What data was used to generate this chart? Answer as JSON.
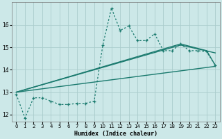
{
  "xlabel": "Humidex (Indice chaleur)",
  "bg_color": "#cce8e8",
  "grid_color": "#aacccc",
  "line_color": "#1a7a6e",
  "xlim": [
    -0.5,
    23.5
  ],
  "ylim": [
    11.7,
    17.0
  ],
  "yticks": [
    12,
    13,
    14,
    15,
    16
  ],
  "xticks": [
    0,
    1,
    2,
    3,
    4,
    5,
    6,
    7,
    8,
    9,
    10,
    11,
    12,
    13,
    14,
    15,
    16,
    17,
    18,
    19,
    20,
    21,
    22,
    23
  ],
  "line1_x": [
    0,
    1,
    2,
    3,
    4,
    5,
    6,
    7,
    8,
    9,
    10,
    11,
    12,
    13,
    14,
    15,
    16,
    17,
    18,
    19,
    20,
    21,
    22,
    23
  ],
  "line1_y": [
    12.9,
    11.85,
    12.75,
    12.75,
    12.6,
    12.45,
    12.45,
    12.5,
    12.5,
    12.6,
    15.1,
    16.75,
    15.75,
    15.95,
    15.3,
    15.3,
    15.6,
    14.85,
    14.85,
    15.15,
    14.85,
    14.85,
    14.8,
    14.2
  ],
  "line2_x": [
    0,
    23
  ],
  "line2_y": [
    13.0,
    14.15
  ],
  "line3_x": [
    0,
    19,
    23
  ],
  "line3_y": [
    13.0,
    15.1,
    14.75
  ],
  "line4_x": [
    0,
    19,
    22,
    23
  ],
  "line4_y": [
    13.0,
    15.15,
    14.85,
    14.2
  ]
}
